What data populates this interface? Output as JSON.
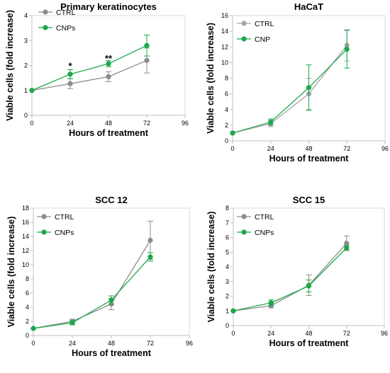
{
  "chart_data": [
    {
      "type": "line",
      "title": "Primary keratinocytes",
      "xlabel": "Hours of treatment",
      "ylabel": "Viable cells (fold increase)",
      "x": [
        0,
        24,
        48,
        72
      ],
      "xlim": [
        0,
        96
      ],
      "xticks": [
        0,
        24,
        48,
        72,
        96
      ],
      "ylim": [
        0,
        4
      ],
      "yticks": [
        0,
        1,
        2,
        3,
        4
      ],
      "grid": false,
      "legend": "top-left",
      "series": [
        {
          "name": "CTRL",
          "color": "#8c8c8c",
          "values": [
            1,
            1.27,
            1.55,
            2.2
          ],
          "errors": [
            0,
            0.2,
            0.2,
            0.5
          ]
        },
        {
          "name": "CNPs",
          "color": "#1aa84a",
          "values": [
            1,
            1.65,
            2.07,
            2.8
          ],
          "errors": [
            0,
            0.18,
            0.12,
            0.42
          ]
        }
      ],
      "annotations": [
        {
          "text": "*",
          "x": 24,
          "y": 2.0
        },
        {
          "text": "**",
          "x": 48,
          "y": 2.3
        }
      ]
    },
    {
      "type": "line",
      "title": "HaCaT",
      "xlabel": "Hours of treatment",
      "ylabel": "Viable cells (fold increase)",
      "x": [
        0,
        24,
        48,
        72
      ],
      "xlim": [
        0,
        96
      ],
      "xticks": [
        0,
        24,
        48,
        72,
        96
      ],
      "ylim": [
        0,
        16
      ],
      "yticks": [
        0,
        2,
        4,
        6,
        8,
        10,
        12,
        14,
        16
      ],
      "grid": false,
      "legend": "top-left",
      "series": [
        {
          "name": "CTRL",
          "color": "#a6a6a6",
          "values": [
            1,
            2.2,
            6.0,
            12.2
          ],
          "errors": [
            0,
            0.4,
            2.0,
            2.0
          ]
        },
        {
          "name": "CNP",
          "color": "#1aa84a",
          "values": [
            1,
            2.4,
            6.8,
            11.7
          ],
          "errors": [
            0,
            0.4,
            2.9,
            2.4
          ]
        }
      ],
      "annotations": []
    },
    {
      "type": "line",
      "title": "SCC 12",
      "xlabel": "Hours of treatment",
      "ylabel": "Viable cells (fold increase)",
      "x": [
        0,
        24,
        48,
        72
      ],
      "xlim": [
        0,
        96
      ],
      "xticks": [
        0,
        24,
        48,
        72,
        96
      ],
      "ylim": [
        0,
        18
      ],
      "yticks": [
        0,
        2,
        4,
        6,
        8,
        10,
        12,
        14,
        16,
        18
      ],
      "grid": false,
      "legend": "top-left",
      "series": [
        {
          "name": "CTRL",
          "color": "#8c8c8c",
          "values": [
            1,
            2.0,
            4.45,
            13.45
          ],
          "errors": [
            0,
            0.3,
            0.8,
            2.7
          ]
        },
        {
          "name": "CNPs",
          "color": "#1aa84a",
          "values": [
            1,
            1.8,
            5.0,
            11.1
          ],
          "errors": [
            0,
            0.3,
            0.6,
            0.6
          ]
        }
      ],
      "annotations": []
    },
    {
      "type": "line",
      "title": "SCC 15",
      "xlabel": "Hours of treatment",
      "ylabel": "Viable cells (fold increase)",
      "x": [
        0,
        24,
        48,
        72
      ],
      "xlim": [
        0,
        96
      ],
      "xticks": [
        0,
        24,
        48,
        72,
        96
      ],
      "ylim": [
        0,
        8
      ],
      "yticks": [
        0,
        1,
        2,
        3,
        4,
        5,
        6,
        7,
        8
      ],
      "grid": false,
      "legend": "top-left",
      "series": [
        {
          "name": "CTRL",
          "color": "#8c8c8c",
          "values": [
            1,
            1.35,
            2.75,
            5.6
          ],
          "errors": [
            0,
            0.15,
            0.7,
            0.5
          ]
        },
        {
          "name": "CNPs",
          "color": "#1aa84a",
          "values": [
            1,
            1.55,
            2.7,
            5.3
          ],
          "errors": [
            0,
            0.2,
            0.4,
            0.15
          ]
        }
      ],
      "annotations": []
    }
  ]
}
